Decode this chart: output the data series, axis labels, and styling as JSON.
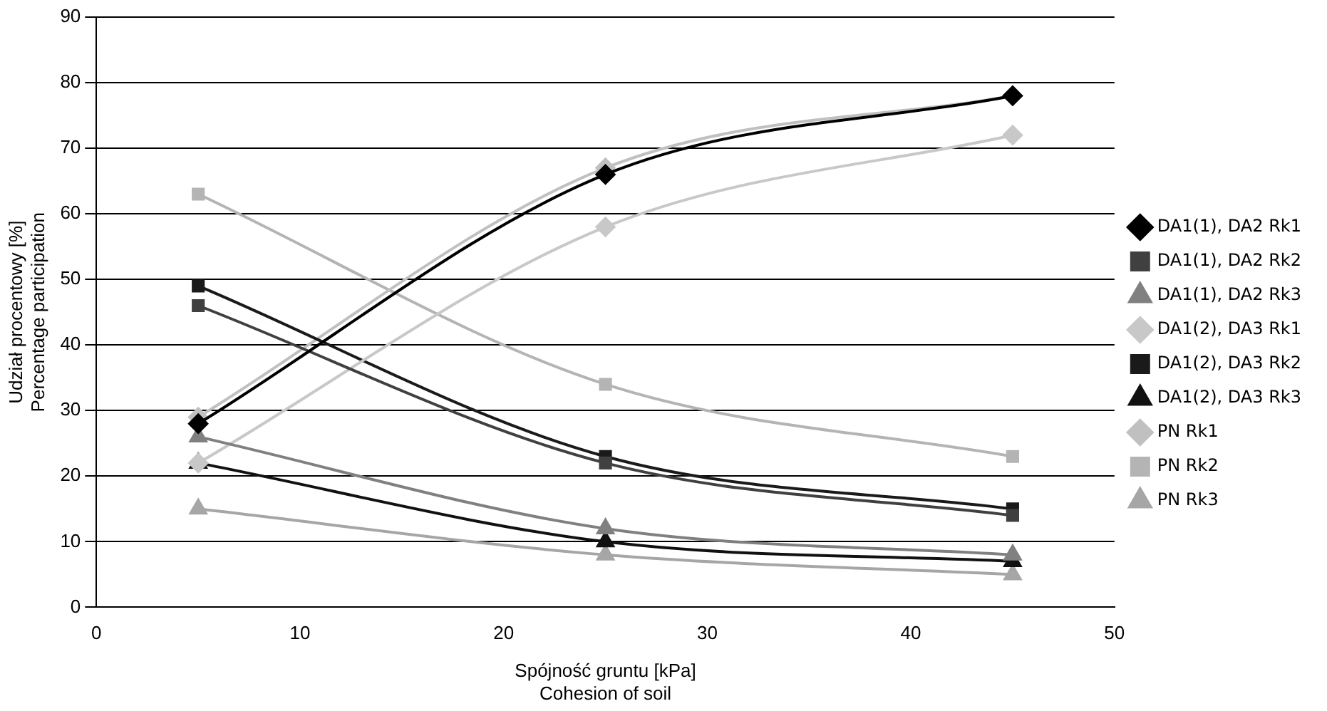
{
  "chart_data": {
    "type": "line",
    "xlabel": "Spójność gruntu [kPa]\nCohesion of soil",
    "ylabel": "Udział procentowy [%]\nPercentage participation",
    "x": [
      5,
      25,
      45
    ],
    "xlim": [
      0,
      50
    ],
    "xticks": [
      0,
      10,
      20,
      30,
      40,
      50
    ],
    "ylim": [
      0,
      90
    ],
    "yticks": [
      0,
      10,
      20,
      30,
      40,
      50,
      60,
      70,
      80,
      90
    ],
    "grid": "y",
    "legend": "right",
    "line_style": "solid",
    "series": [
      {
        "name": "DA1(1), DA2 Rk1",
        "color": "#000000",
        "marker": "diamond",
        "values": [
          28,
          66,
          78
        ]
      },
      {
        "name": "DA1(1), DA2 Rk2",
        "color": "#404040",
        "marker": "square",
        "values": [
          46,
          22,
          14
        ]
      },
      {
        "name": "DA1(1), DA2 Rk3",
        "color": "#808080",
        "marker": "triangle",
        "values": [
          26,
          12,
          8
        ]
      },
      {
        "name": "DA1(2), DA3 Rk1",
        "color": "#c8c8c8",
        "marker": "diamond",
        "values": [
          22,
          58,
          72
        ]
      },
      {
        "name": "DA1(2), DA3 Rk2",
        "color": "#1a1a1a",
        "marker": "square",
        "values": [
          49,
          23,
          15
        ]
      },
      {
        "name": "DA1(2), DA3 Rk3",
        "color": "#111111",
        "marker": "triangle",
        "values": [
          22,
          10,
          7
        ]
      },
      {
        "name": "PN Rk1",
        "color": "#c0c0c0",
        "marker": "diamond",
        "values": [
          29,
          67,
          78
        ]
      },
      {
        "name": "PN Rk2",
        "color": "#b4b4b4",
        "marker": "square",
        "values": [
          63,
          34,
          23
        ]
      },
      {
        "name": "PN Rk3",
        "color": "#a6a6a6",
        "marker": "triangle",
        "values": [
          15,
          8,
          5
        ]
      }
    ]
  }
}
